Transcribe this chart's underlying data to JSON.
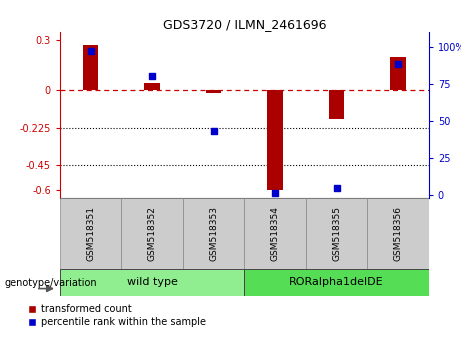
{
  "title": "GDS3720 / ILMN_2461696",
  "samples": [
    "GSM518351",
    "GSM518352",
    "GSM518353",
    "GSM518354",
    "GSM518355",
    "GSM518356"
  ],
  "red_values": [
    0.27,
    0.04,
    -0.02,
    -0.6,
    -0.175,
    0.2
  ],
  "blue_values_pct": [
    97,
    80,
    43,
    1,
    5,
    88
  ],
  "ylim_left": [
    -0.65,
    0.35
  ],
  "ylim_right": [
    -2.2,
    110
  ],
  "yticks_left": [
    0.3,
    0.0,
    -0.225,
    -0.45,
    -0.6
  ],
  "yticks_right": [
    100,
    75,
    50,
    25,
    0
  ],
  "dotted_lines": [
    -0.225,
    -0.45
  ],
  "bar_color": "#aa0000",
  "dot_color": "#0000cc",
  "groups": [
    {
      "label": "wild type",
      "indices": [
        0,
        1,
        2
      ],
      "color": "#90ee90"
    },
    {
      "label": "RORalpha1delDE",
      "indices": [
        3,
        4,
        5
      ],
      "color": "#55dd55"
    }
  ],
  "group_label": "genotype/variation",
  "legend_red": "transformed count",
  "legend_blue": "percentile rank within the sample",
  "tick_label_bg": "#cccccc",
  "background_color": "#ffffff",
  "plot_bg": "#ffffff",
  "right_axis_color": "#0000cc",
  "left_axis_color": "#cc0000"
}
